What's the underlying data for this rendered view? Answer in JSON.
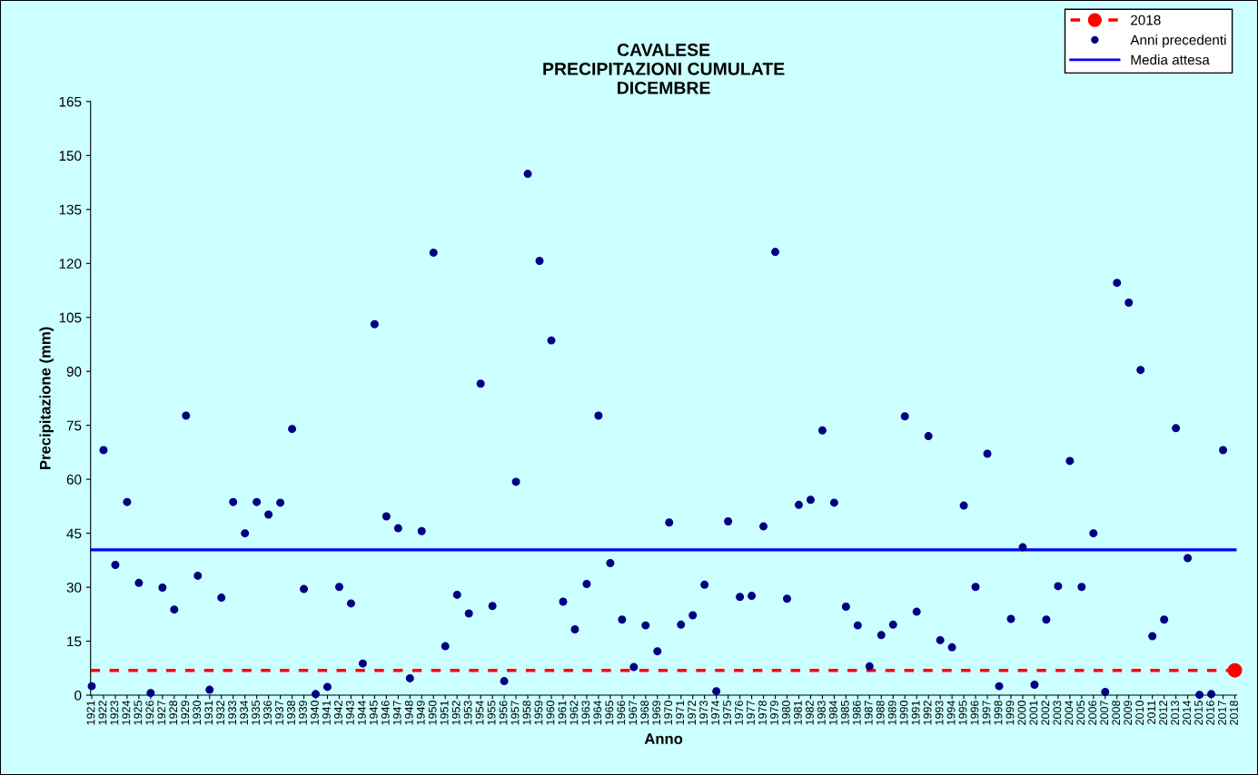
{
  "chart_data": {
    "type": "scatter",
    "title": "CAVALESE\nPRECIPITAZIONI CUMULATE\nDICEMBRE",
    "xlabel": "Anno",
    "ylabel": "Precipitazione (mm)",
    "categories": [
      "1921",
      "1922",
      "1923",
      "1924",
      "1925",
      "1926",
      "1927",
      "1928",
      "1929",
      "1930",
      "1931",
      "1932",
      "1933",
      "1934",
      "1935",
      "1936",
      "1937",
      "1938",
      "1939",
      "1940",
      "1941",
      "1942",
      "1943",
      "1944",
      "1945",
      "1946",
      "1947",
      "1948",
      "1949",
      "1950",
      "1951",
      "1952",
      "1953",
      "1954",
      "1955",
      "1956",
      "1957",
      "1958",
      "1959",
      "1960",
      "1961",
      "1962",
      "1963",
      "1964",
      "1965",
      "1966",
      "1967",
      "1968",
      "1969",
      "1970",
      "1971",
      "1972",
      "1973",
      "1974",
      "1975",
      "1976",
      "1977",
      "1978",
      "1979",
      "1980",
      "1981",
      "1982",
      "1983",
      "1984",
      "1985",
      "1986",
      "1987",
      "1988",
      "1989",
      "1990",
      "1991",
      "1992",
      "1993",
      "1994",
      "1995",
      "1996",
      "1997",
      "1998",
      "1999",
      "2000",
      "2001",
      "2002",
      "2003",
      "2004",
      "2005",
      "2006",
      "2007",
      "2008",
      "2009",
      "2010",
      "2011",
      "2012",
      "2013",
      "2014",
      "2015",
      "2016",
      "2017",
      "2018"
    ],
    "series": [
      {
        "name": "2018",
        "color": "#ff0000",
        "values": [
          null,
          null,
          null,
          null,
          null,
          null,
          null,
          null,
          null,
          null,
          null,
          null,
          null,
          null,
          null,
          null,
          null,
          null,
          null,
          null,
          null,
          null,
          null,
          null,
          null,
          null,
          null,
          null,
          null,
          null,
          null,
          null,
          null,
          null,
          null,
          null,
          null,
          null,
          null,
          null,
          null,
          null,
          null,
          null,
          null,
          null,
          null,
          null,
          null,
          null,
          null,
          null,
          null,
          null,
          null,
          null,
          null,
          null,
          null,
          null,
          null,
          null,
          null,
          null,
          null,
          null,
          null,
          null,
          null,
          null,
          null,
          null,
          null,
          null,
          null,
          null,
          null,
          null,
          null,
          null,
          null,
          null,
          null,
          null,
          null,
          null,
          null,
          null,
          null,
          null,
          null,
          null,
          null,
          null,
          null,
          null,
          null,
          6.9
        ]
      },
      {
        "name": "Anni precedenti",
        "color": "#000080",
        "values": [
          2.5,
          68.1,
          36.2,
          53.7,
          31.2,
          0.6,
          29.9,
          23.8,
          77.7,
          33.2,
          1.5,
          27.1,
          53.7,
          45.0,
          53.7,
          50.2,
          53.5,
          74.0,
          29.5,
          0.3,
          2.3,
          30.1,
          25.5,
          8.8,
          103.1,
          49.7,
          46.4,
          4.7,
          45.6,
          123.0,
          13.6,
          27.9,
          22.7,
          86.6,
          24.8,
          3.9,
          59.3,
          144.9,
          120.7,
          98.6,
          26.0,
          18.3,
          30.9,
          77.7,
          36.7,
          21.0,
          7.8,
          19.4,
          12.2,
          48.0,
          19.6,
          22.2,
          30.7,
          1.1,
          48.3,
          27.3,
          27.6,
          46.9,
          123.2,
          26.8,
          52.9,
          54.3,
          73.6,
          53.5,
          24.6,
          19.4,
          8.0,
          16.7,
          19.6,
          77.5,
          23.2,
          72.0,
          15.3,
          13.3,
          52.7,
          30.1,
          67.1,
          2.5,
          21.2,
          41.1,
          2.9,
          21.0,
          30.3,
          65.1,
          30.1,
          45.0,
          0.9,
          114.6,
          109.1,
          90.4,
          16.4,
          21.0,
          74.2,
          38.1,
          0.1,
          0.3,
          68.1,
          null
        ]
      }
    ],
    "ref_lines": [
      {
        "axis": "y",
        "value": 6.9,
        "color": "#ff0000",
        "line_style": "dashed"
      },
      {
        "axis": "y",
        "value": 40.4,
        "color": "#0000ff",
        "line_style": "solid",
        "label": "Media attesa"
      }
    ],
    "ylim": [
      0,
      165
    ],
    "yticks": [
      0,
      15,
      30,
      45,
      60,
      75,
      90,
      105,
      120,
      135,
      150,
      165
    ],
    "grid": false,
    "legend": "top right",
    "marker": "circle"
  }
}
